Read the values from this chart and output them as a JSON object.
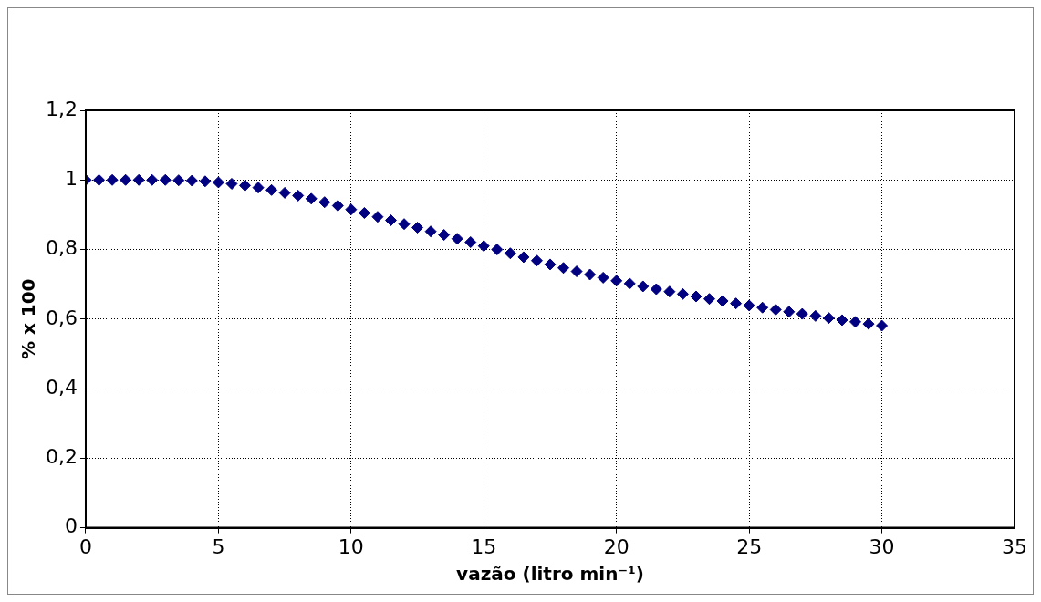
{
  "chart_data": {
    "type": "scatter",
    "xlabel": "vazão (litro min⁻¹)",
    "ylabel": "% x 100",
    "x": [
      0,
      0.5,
      1,
      1.5,
      2,
      2.5,
      3,
      3.5,
      4,
      4.5,
      5,
      5.5,
      6,
      6.5,
      7,
      7.5,
      8,
      8.5,
      9,
      9.5,
      10,
      10.5,
      11,
      11.5,
      12,
      12.5,
      13,
      13.5,
      14,
      14.5,
      15,
      15.5,
      16,
      16.5,
      17,
      17.5,
      18,
      18.5,
      19,
      19.5,
      20,
      20.5,
      21,
      21.5,
      22,
      22.5,
      23,
      23.5,
      24,
      24.5,
      25,
      25.5,
      26,
      26.5,
      27,
      27.5,
      28,
      28.5,
      29,
      29.5,
      30
    ],
    "values": [
      1.0,
      1.0,
      1.0,
      1.0,
      1.0,
      1.0,
      1.0,
      0.999,
      0.998,
      0.996,
      0.993,
      0.989,
      0.984,
      0.978,
      0.971,
      0.963,
      0.955,
      0.946,
      0.936,
      0.926,
      0.915,
      0.905,
      0.894,
      0.884,
      0.873,
      0.863,
      0.852,
      0.842,
      0.831,
      0.821,
      0.81,
      0.8,
      0.789,
      0.778,
      0.768,
      0.757,
      0.747,
      0.737,
      0.728,
      0.719,
      0.71,
      0.702,
      0.694,
      0.686,
      0.679,
      0.672,
      0.665,
      0.658,
      0.652,
      0.645,
      0.639,
      0.633,
      0.627,
      0.621,
      0.615,
      0.609,
      0.603,
      0.597,
      0.592,
      0.586,
      0.581
    ],
    "color": "#000080",
    "marker": "diamond",
    "xlim": [
      0,
      35
    ],
    "xticks": [
      0,
      5,
      10,
      15,
      20,
      25,
      30,
      35
    ],
    "ylim": [
      0,
      1.2
    ],
    "yticks": [
      0,
      {
        "value": 0.2,
        "label": "0,2"
      },
      {
        "value": 0.4,
        "label": "0,4"
      },
      {
        "value": 0.6,
        "label": "0,6"
      },
      {
        "value": 0.8,
        "label": "0,8"
      },
      1,
      {
        "value": 1.2,
        "label": "1,2"
      }
    ],
    "grid": true
  }
}
